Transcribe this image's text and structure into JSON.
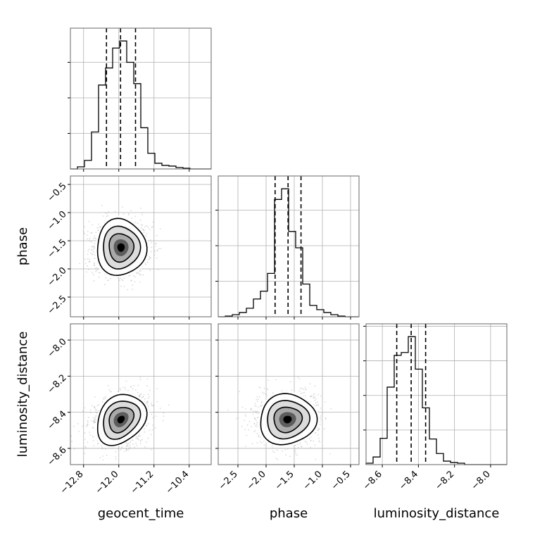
{
  "chart_data": {
    "type": "corner",
    "parameters": [
      "geocent_time",
      "phase",
      "luminosity_distance"
    ],
    "axis_labels": {
      "geocent_time": "geocent_time",
      "phase": "phase",
      "luminosity_distance": "luminosity_distance"
    },
    "grid": true,
    "ranges": {
      "geocent_time": [
        -13.1,
        -9.9
      ],
      "phase": [
        -2.85,
        -0.35
      ],
      "luminosity_distance": [
        -8.69,
        -7.91
      ]
    },
    "ticks": {
      "geocent_time": [
        -12.8,
        -12.0,
        -11.2,
        -10.4
      ],
      "phase": [
        -2.5,
        -2.0,
        -1.5,
        -1.0,
        -0.5
      ],
      "luminosity_distance": [
        -8.6,
        -8.4,
        -8.2,
        -8.0
      ]
    },
    "tick_labels": {
      "geocent_time": [
        "−12.8",
        "−12.0",
        "−11.2",
        "−10.4"
      ],
      "phase": [
        "−2.5",
        "−2.0",
        "−1.5",
        "−1.0",
        "−0.5"
      ],
      "luminosity_distance": [
        "−8.6",
        "−8.4",
        "−8.2",
        "−8.0"
      ]
    },
    "histograms": {
      "geocent_time": {
        "edges": [
          -13.1,
          -12.94,
          -12.78,
          -12.62,
          -12.46,
          -12.3,
          -12.14,
          -11.98,
          -11.82,
          -11.66,
          -11.5,
          -11.34,
          -11.18,
          -11.02,
          -10.86,
          -10.7,
          -10.54,
          -10.38,
          -10.22,
          -10.06,
          -9.9
        ],
        "counts": [
          0,
          3,
          12,
          52,
          118,
          142,
          170,
          180,
          150,
          120,
          58,
          22,
          8,
          5,
          4,
          2,
          1,
          0,
          0,
          0
        ],
        "quantiles": [
          -12.28,
          -11.96,
          -11.62
        ]
      },
      "phase": {
        "edges": [
          -2.85,
          -2.725,
          -2.6,
          -2.475,
          -2.35,
          -2.225,
          -2.1,
          -1.975,
          -1.85,
          -1.725,
          -1.6,
          -1.475,
          -1.35,
          -1.225,
          -1.1,
          -0.975,
          -0.85,
          -0.725,
          -0.6,
          -0.475,
          -0.35
        ],
        "counts": [
          0,
          1,
          3,
          6,
          12,
          25,
          36,
          61,
          165,
          180,
          120,
          97,
          46,
          16,
          10,
          6,
          3,
          1,
          0,
          0
        ],
        "quantiles": [
          -1.84,
          -1.61,
          -1.38
        ]
      },
      "luminosity_distance": {
        "edges": [
          -8.69,
          -8.651,
          -8.612,
          -8.573,
          -8.534,
          -8.495,
          -8.456,
          -8.417,
          -8.378,
          -8.339,
          -8.3,
          -8.261,
          -8.222,
          -8.183,
          -8.144,
          -8.105,
          -8.066,
          -8.027,
          -7.988,
          -7.949,
          -7.91
        ],
        "counts": [
          2,
          11,
          38,
          112,
          158,
          162,
          185,
          138,
          82,
          37,
          16,
          5,
          3,
          2,
          0,
          0,
          0,
          0,
          0,
          0
        ],
        "quantiles": [
          -8.52,
          -8.44,
          -8.36
        ]
      }
    },
    "joint": [
      {
        "x": "geocent_time",
        "y": "phase",
        "mean": [
          -11.95,
          -1.62
        ],
        "sd": [
          0.28,
          0.25
        ],
        "rho": 0.0
      },
      {
        "x": "geocent_time",
        "y": "luminosity_distance",
        "mean": [
          -11.95,
          -8.44
        ],
        "sd": [
          0.28,
          0.07
        ],
        "rho": 0.25
      },
      {
        "x": "phase",
        "y": "luminosity_distance",
        "mean": [
          -1.62,
          -8.44
        ],
        "sd": [
          0.25,
          0.07
        ],
        "rho": 0.05
      }
    ]
  }
}
